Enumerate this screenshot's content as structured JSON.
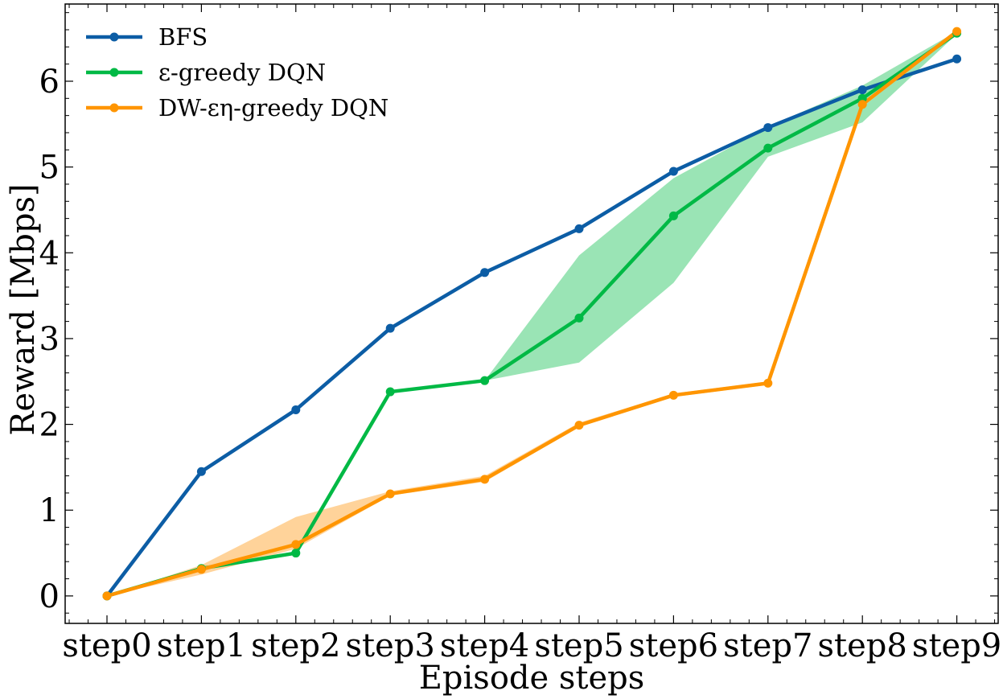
{
  "chart_data": {
    "type": "line",
    "title": "",
    "xlabel": "Episode steps",
    "ylabel": "Reward [Mbps]",
    "categories": [
      "step0",
      "step1",
      "step2",
      "step3",
      "step4",
      "step5",
      "step6",
      "step7",
      "step8",
      "step9"
    ],
    "ylim": [
      -0.32,
      6.9
    ],
    "yticks": [
      0,
      1,
      2,
      3,
      4,
      5,
      6
    ],
    "legend_position": "top-left",
    "grid": false,
    "series": [
      {
        "name": "BFS",
        "color": "#0C5DA5",
        "values": [
          0.0,
          1.45,
          2.17,
          3.12,
          3.77,
          4.28,
          4.95,
          5.46,
          5.9,
          6.26
        ]
      },
      {
        "name": "ε-greedy DQN",
        "color": "#00B945",
        "band_color": "#9AE4B5",
        "values": [
          0.0,
          0.32,
          0.5,
          2.38,
          2.51,
          3.24,
          4.43,
          5.22,
          5.8,
          6.56
        ],
        "band_low": [
          0.0,
          0.3,
          0.48,
          2.38,
          2.51,
          2.72,
          3.65,
          5.12,
          5.52,
          6.55
        ],
        "band_high": [
          0.0,
          0.32,
          0.52,
          2.38,
          2.51,
          3.97,
          4.87,
          5.47,
          5.95,
          6.58
        ]
      },
      {
        "name": "DW-εη-greedy DQN",
        "color": "#FF9500",
        "band_color": "#FFD39A",
        "values": [
          0.0,
          0.31,
          0.6,
          1.19,
          1.36,
          1.99,
          2.34,
          2.48,
          5.73,
          6.58
        ],
        "band_low": [
          0.0,
          0.25,
          0.55,
          1.17,
          1.33,
          1.97,
          2.32,
          2.46,
          5.7,
          6.57
        ],
        "band_high": [
          0.0,
          0.36,
          0.92,
          1.22,
          1.4,
          2.02,
          2.36,
          2.5,
          5.76,
          6.59
        ]
      }
    ]
  }
}
